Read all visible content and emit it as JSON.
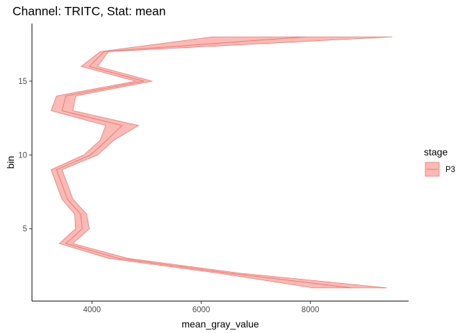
{
  "chart_data": {
    "type": "area",
    "title": "Channel: TRITC, Stat: mean",
    "xlabel": "mean_gray_value",
    "ylabel": "bin",
    "xlim": [
      2900,
      9800
    ],
    "ylim": [
      0.1,
      18.9
    ],
    "xticks": [
      4000,
      6000,
      8000
    ],
    "yticks": [
      5,
      10,
      15
    ],
    "grid": false,
    "legend": {
      "title": "stage",
      "position": "right",
      "entries": [
        "P3"
      ]
    },
    "series": [
      {
        "name": "P3",
        "fill_color": "#F8766D",
        "fill_opacity": 0.5,
        "bin": [
          1,
          2,
          3,
          4,
          5,
          6,
          7,
          8,
          9,
          10,
          11,
          12,
          13,
          14,
          15,
          16,
          17,
          18
        ],
        "xmin": [
          8050,
          6300,
          4300,
          3400,
          3700,
          3680,
          3450,
          3350,
          3250,
          3850,
          4150,
          4250,
          3250,
          3350,
          4800,
          3800,
          4150,
          6200
        ],
        "xmax": [
          9400,
          6700,
          4650,
          3650,
          3950,
          3900,
          3650,
          3550,
          3450,
          4100,
          4400,
          4850,
          3650,
          3700,
          5100,
          4100,
          4300,
          9500
        ],
        "mid": [
          8750,
          6500,
          4480,
          3520,
          3820,
          3790,
          3550,
          3450,
          3350,
          3970,
          4270,
          4550,
          3450,
          3520,
          4950,
          3950,
          4220,
          7900
        ]
      }
    ]
  }
}
